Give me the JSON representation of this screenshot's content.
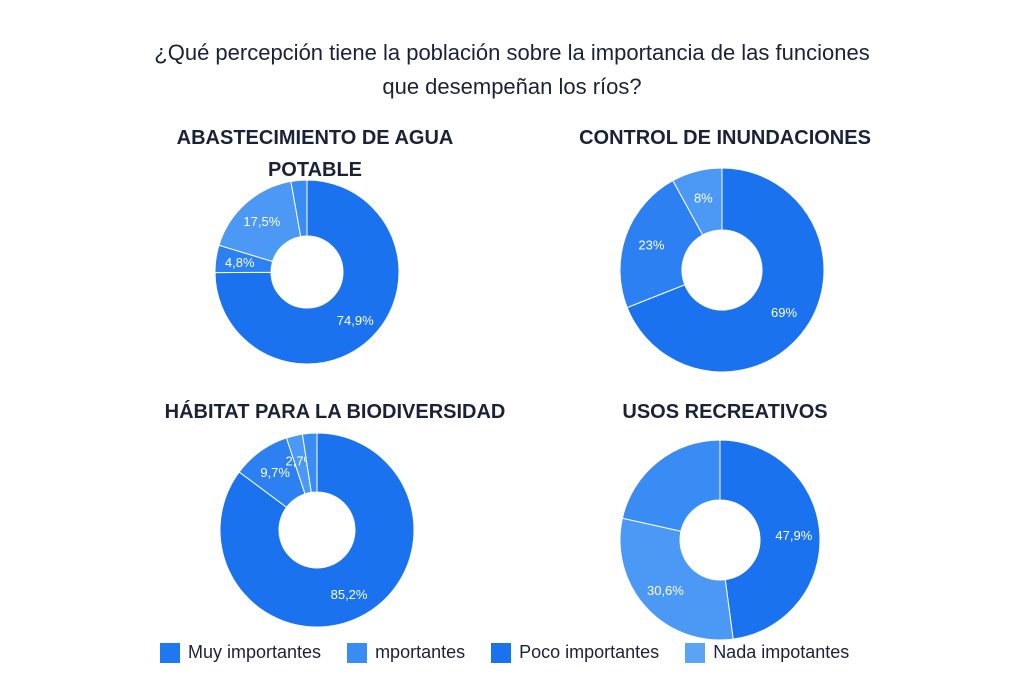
{
  "title_lines": [
    "¿Qué percepción tiene la población sobre la importancia de las funciones",
    "que desempeñan los ríos?"
  ],
  "legend": [
    {
      "label": "Muy importantes",
      "color": "#1e78f0"
    },
    {
      "label": "mportantes",
      "color": "#3a8cf5"
    },
    {
      "label": "Poco importantes",
      "color": "#1a72ee"
    },
    {
      "label": "Nada impotantes",
      "color": "#5aa4f5"
    }
  ],
  "chart_data": [
    {
      "type": "pie",
      "variant": "donut",
      "title_lines": [
        "ABASTECIMIENTO DE AGUA",
        "POTABLE"
      ],
      "slices": [
        {
          "label": "74,9%",
          "value": 74.9,
          "color": "#1a72ee"
        },
        {
          "label": "4,8%",
          "value": 4.8,
          "color": "#2d80f2"
        },
        {
          "label": "17,5%",
          "value": 17.5,
          "color": "#4b99f5"
        }
      ]
    },
    {
      "type": "pie",
      "variant": "donut",
      "title_lines": [
        "CONTROL DE INUNDACIONES"
      ],
      "slices": [
        {
          "label": "69%",
          "value": 69,
          "color": "#1a72ee"
        },
        {
          "label": "23%",
          "value": 23,
          "color": "#2d80f2"
        },
        {
          "label": "8%",
          "value": 8,
          "color": "#4b99f5"
        }
      ]
    },
    {
      "type": "pie",
      "variant": "donut",
      "title_lines": [
        "HÁBITAT PARA LA BIODIVERSIDAD"
      ],
      "slices": [
        {
          "label": "85,2%",
          "value": 85.2,
          "color": "#1a72ee"
        },
        {
          "label": "9,7%",
          "value": 9.7,
          "color": "#2d80f2"
        },
        {
          "label": "2,7%",
          "value": 2.7,
          "color": "#4b99f5"
        }
      ]
    },
    {
      "type": "pie",
      "variant": "donut",
      "title_lines": [
        "USOS RECREATIVOS"
      ],
      "slices": [
        {
          "label": "47,9%",
          "value": 47.9,
          "color": "#1a72ee"
        },
        {
          "label": "30,6%",
          "value": 30.6,
          "color": "#4b99f5"
        }
      ]
    }
  ]
}
